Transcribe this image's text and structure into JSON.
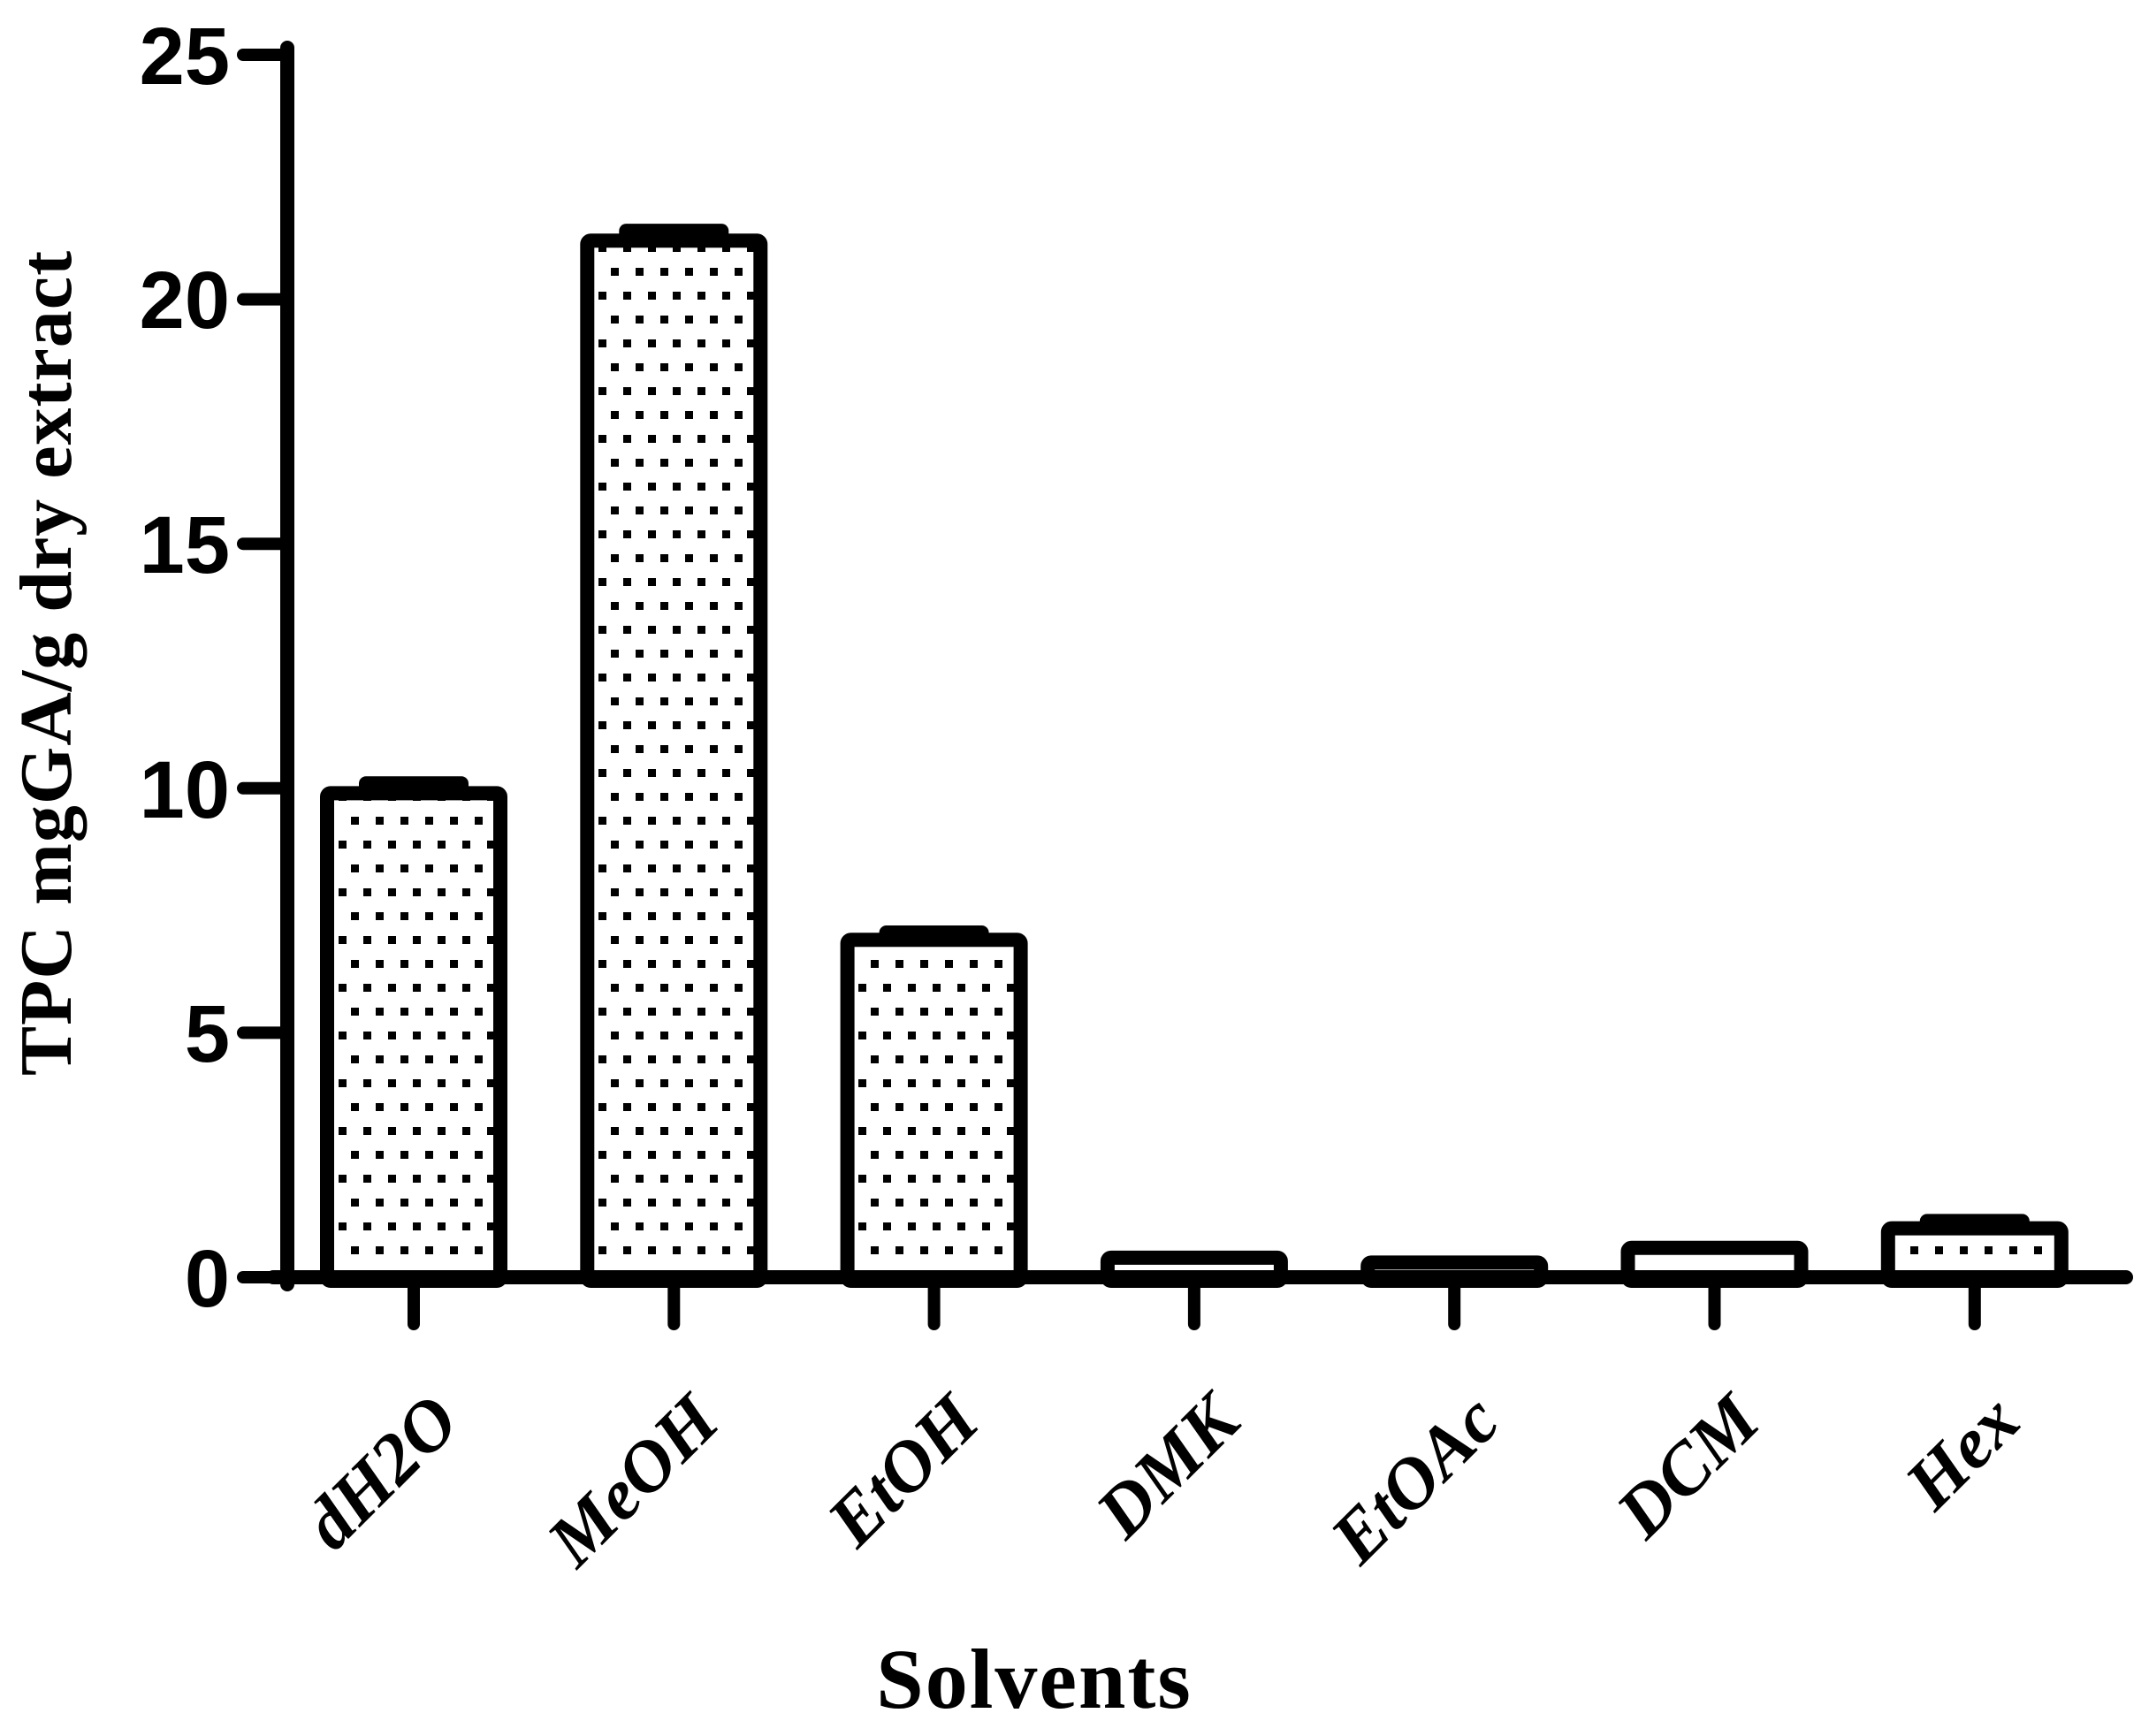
{
  "figure": {
    "background_color": "#ffffff",
    "ink_color": "#000000"
  },
  "chart_data": {
    "type": "bar",
    "title": "",
    "xlabel": "Solvents",
    "ylabel": "TPC mgGA/g dry extract",
    "categories": [
      "dH2O",
      "MeOH",
      "EtOH",
      "DMK",
      "EtOAc",
      "DCM",
      "Hex"
    ],
    "values": [
      9.9,
      21.2,
      6.9,
      0.4,
      0.3,
      0.6,
      1.0
    ],
    "errors": [
      0.2,
      0.2,
      0.15,
      0.15,
      0.1,
      0.15,
      0.15
    ],
    "error_caps_visible": [
      true,
      true,
      true,
      false,
      false,
      false,
      true
    ],
    "ylim": [
      0,
      25
    ],
    "yticks": [
      0,
      5,
      10,
      15,
      20,
      25
    ],
    "ytick_labels": [
      "0",
      "5",
      "10",
      "15",
      "20",
      "25"
    ],
    "bar_fill": "white-with-black-stipple-dots",
    "bar_border_color": "#000000",
    "grid": false,
    "legend": null
  }
}
